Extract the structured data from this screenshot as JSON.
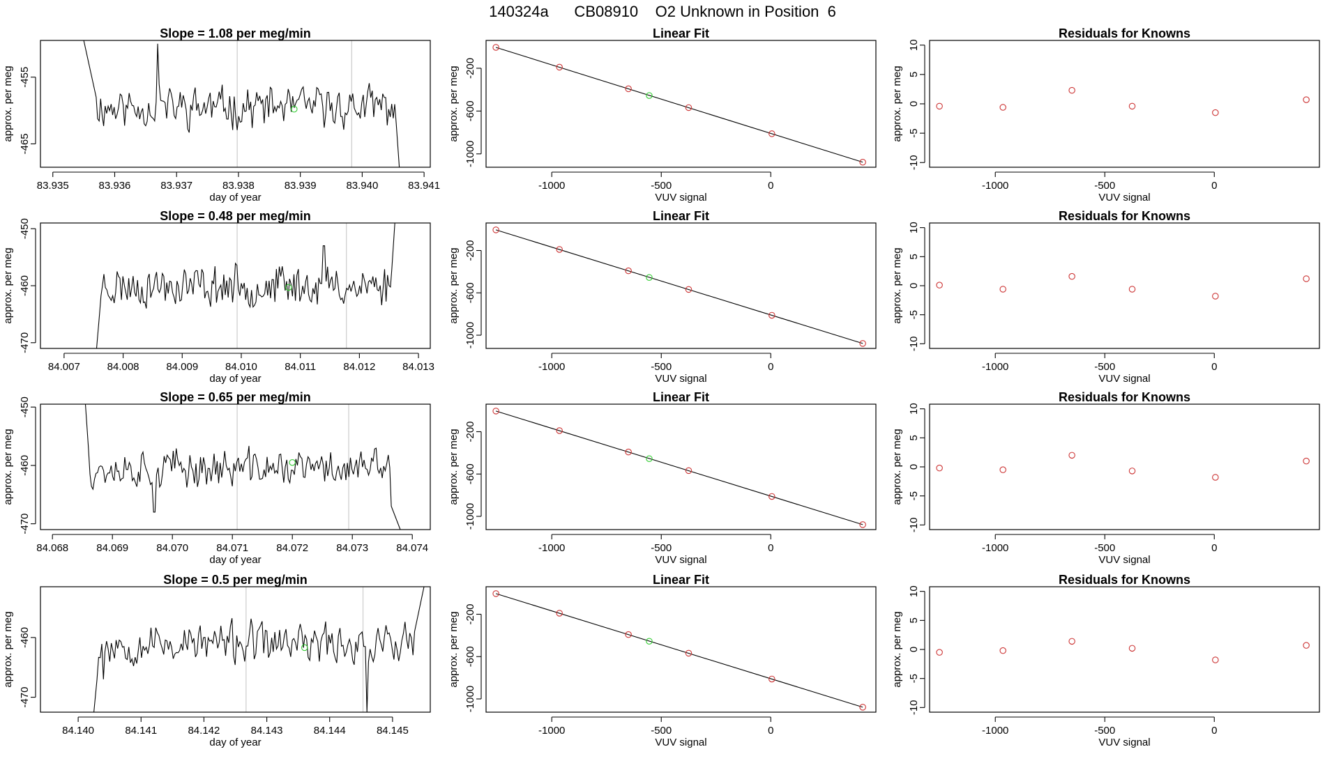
{
  "page": {
    "title": "140324a      CB08910    O2 Unknown in Position  6"
  },
  "colors": {
    "axis": "#000000",
    "trace": "#000000",
    "vline": "#cccccc",
    "known_point": "#cc3333",
    "unknown_point": "#33cc33"
  },
  "chart_data": [
    {
      "type": "line",
      "row": 0,
      "panel": "timeseries",
      "title": "Slope =  1.08  per meg/min",
      "xlabel": "day of year",
      "ylabel": "approx. per meg",
      "xlim": [
        83.9348,
        83.9411
      ],
      "ylim": [
        -468.5,
        -449.5
      ],
      "x_ticks": [
        83.935,
        83.936,
        83.937,
        83.938,
        83.939,
        83.94,
        83.941
      ],
      "x_tick_labels": [
        "83.935",
        "83.936",
        "83.937",
        "83.938",
        "83.939",
        "83.940",
        "83.941"
      ],
      "y_ticks": [
        -465,
        -455
      ],
      "y_tick_labels": [
        "-465",
        "-455"
      ],
      "vlines": [
        83.93798,
        83.93983
      ],
      "seed": 11,
      "level": -459.5,
      "spread": 3.2,
      "start": {
        "x": [
          83.9355,
          83.9357
        ],
        "y": [
          -449.5,
          -458
        ]
      },
      "end": {
        "x": [
          83.94055,
          83.9406
        ],
        "y": [
          -462,
          -468.5
        ]
      },
      "spikes": [
        {
          "x": 83.9367,
          "y": -450
        }
      ],
      "unknown": {
        "x": 83.9389,
        "y": -459.8
      }
    },
    {
      "type": "scatter",
      "row": 0,
      "panel": "fit",
      "title": "Linear Fit",
      "xlabel": "VUV signal",
      "ylabel": "approx. per meg",
      "xlim": [
        -1300,
        480
      ],
      "ylim": [
        -1125,
        60
      ],
      "x_ticks": [
        -1000,
        -500,
        0
      ],
      "x_tick_labels": [
        "-1000",
        "-500",
        "0"
      ],
      "y_ticks": [
        -1000,
        -600,
        -200
      ],
      "y_tick_labels": [
        "-1000",
        "-600",
        "-200"
      ],
      "line": {
        "x": [
          -1255,
          420
        ],
        "y": [
          -5,
          -1078
        ]
      },
      "known": {
        "x": [
          -1255,
          -965,
          -650,
          -375,
          5,
          420
        ],
        "y": [
          -5,
          -190,
          -392,
          -568,
          -812,
          -1078
        ]
      },
      "unknown": {
        "x": -555,
        "y": -455
      }
    },
    {
      "type": "scatter",
      "row": 0,
      "panel": "residuals",
      "title": "Residuals for Knowns",
      "xlabel": "VUV signal",
      "ylabel": "approx. per meg",
      "xlim": [
        -1300,
        480
      ],
      "ylim": [
        -10.8,
        10.8
      ],
      "x_ticks": [
        -1000,
        -500,
        0
      ],
      "x_tick_labels": [
        "-1000",
        "-500",
        "0"
      ],
      "y_ticks": [
        -10,
        -5,
        0,
        5,
        10
      ],
      "y_tick_labels": [
        "-10",
        "-5",
        "0",
        "5",
        "10"
      ],
      "points": {
        "x": [
          -1255,
          -965,
          -650,
          -375,
          5,
          420
        ],
        "y": [
          -0.4,
          -0.6,
          2.3,
          -0.4,
          -1.5,
          0.7
        ]
      }
    },
    {
      "type": "line",
      "row": 1,
      "panel": "timeseries",
      "title": "Slope =  0.48  per meg/min",
      "xlabel": "day of year",
      "ylabel": "approx. per meg",
      "xlim": [
        84.0066,
        84.0132
      ],
      "ylim": [
        -471,
        -449
      ],
      "x_ticks": [
        84.007,
        84.008,
        84.009,
        84.01,
        84.011,
        84.012,
        84.013
      ],
      "x_tick_labels": [
        "84.007",
        "84.008",
        "84.009",
        "84.010",
        "84.011",
        "84.012",
        "84.013"
      ],
      "y_ticks": [
        -470,
        -460,
        -450
      ],
      "y_tick_labels": [
        "-470",
        "-460",
        "-450"
      ],
      "vlines": [
        84.00993,
        84.01178
      ],
      "seed": 23,
      "level": -460,
      "spread": 3.8,
      "start": {
        "x": [
          84.00755,
          84.0076
        ],
        "y": [
          -471,
          -465
        ]
      },
      "end": {
        "x": [
          84.01255,
          84.0126
        ],
        "y": [
          -457,
          -449
        ]
      },
      "spikes": [
        {
          "x": 84.0114,
          "y": -453
        }
      ],
      "unknown": {
        "x": 84.0108,
        "y": -460.3
      }
    },
    {
      "type": "scatter",
      "row": 1,
      "panel": "fit",
      "title": "Linear Fit",
      "xlabel": "VUV signal",
      "ylabel": "approx. per meg",
      "xlim": [
        -1300,
        480
      ],
      "ylim": [
        -1125,
        60
      ],
      "x_ticks": [
        -1000,
        -500,
        0
      ],
      "x_tick_labels": [
        "-1000",
        "-500",
        "0"
      ],
      "y_ticks": [
        -1000,
        -600,
        -200
      ],
      "y_tick_labels": [
        "-1000",
        "-600",
        "-200"
      ],
      "line": {
        "x": [
          -1255,
          420
        ],
        "y": [
          -5,
          -1078
        ]
      },
      "known": {
        "x": [
          -1255,
          -965,
          -650,
          -375,
          5,
          420
        ],
        "y": [
          -5,
          -190,
          -392,
          -568,
          -812,
          -1078
        ]
      },
      "unknown": {
        "x": -555,
        "y": -455
      }
    },
    {
      "type": "scatter",
      "row": 1,
      "panel": "residuals",
      "title": "Residuals for Knowns",
      "xlabel": "VUV signal",
      "ylabel": "approx. per meg",
      "xlim": [
        -1300,
        480
      ],
      "ylim": [
        -10.8,
        10.8
      ],
      "x_ticks": [
        -1000,
        -500,
        0
      ],
      "x_tick_labels": [
        "-1000",
        "-500",
        "0"
      ],
      "y_ticks": [
        -10,
        -5,
        0,
        5,
        10
      ],
      "y_tick_labels": [
        "-10",
        "-5",
        "0",
        "5",
        "10"
      ],
      "points": {
        "x": [
          -1255,
          -965,
          -650,
          -375,
          5,
          420
        ],
        "y": [
          0.1,
          -0.6,
          1.6,
          -0.6,
          -1.8,
          1.2
        ]
      }
    },
    {
      "type": "line",
      "row": 2,
      "panel": "timeseries",
      "title": "Slope =  0.65  per meg/min",
      "xlabel": "day of year",
      "ylabel": "approx. per meg",
      "xlim": [
        84.0678,
        84.0743
      ],
      "ylim": [
        -471,
        -449.5
      ],
      "x_ticks": [
        84.068,
        84.069,
        84.07,
        84.071,
        84.072,
        84.073,
        84.074
      ],
      "x_tick_labels": [
        "84.068",
        "84.069",
        "84.070",
        "84.071",
        "84.072",
        "84.073",
        "84.074"
      ],
      "y_ticks": [
        -470,
        -460,
        -450
      ],
      "y_tick_labels": [
        "-470",
        "-460",
        "-450"
      ],
      "vlines": [
        84.07108,
        84.07294
      ],
      "seed": 37,
      "level": -460.5,
      "spread": 3.4,
      "start": {
        "x": [
          84.06855,
          84.0686
        ],
        "y": [
          -449.5,
          -457
        ]
      },
      "end": {
        "x": [
          84.07365,
          84.0738
        ],
        "y": [
          -467,
          -471
        ]
      },
      "spikes": [
        {
          "x": 84.0697,
          "y": -468
        }
      ],
      "unknown": {
        "x": 84.072,
        "y": -459.5
      }
    },
    {
      "type": "scatter",
      "row": 2,
      "panel": "fit",
      "title": "Linear Fit",
      "xlabel": "VUV signal",
      "ylabel": "approx. per meg",
      "xlim": [
        -1300,
        480
      ],
      "ylim": [
        -1125,
        60
      ],
      "x_ticks": [
        -1000,
        -500,
        0
      ],
      "x_tick_labels": [
        "-1000",
        "-500",
        "0"
      ],
      "y_ticks": [
        -1000,
        -600,
        -200
      ],
      "y_tick_labels": [
        "-1000",
        "-600",
        "-200"
      ],
      "line": {
        "x": [
          -1255,
          420
        ],
        "y": [
          -5,
          -1078
        ]
      },
      "known": {
        "x": [
          -1255,
          -965,
          -650,
          -375,
          5,
          420
        ],
        "y": [
          -5,
          -190,
          -392,
          -568,
          -812,
          -1078
        ]
      },
      "unknown": {
        "x": -555,
        "y": -455
      }
    },
    {
      "type": "scatter",
      "row": 2,
      "panel": "residuals",
      "title": "Residuals for Knowns",
      "xlabel": "VUV signal",
      "ylabel": "approx. per meg",
      "xlim": [
        -1300,
        480
      ],
      "ylim": [
        -10.8,
        10.8
      ],
      "x_ticks": [
        -1000,
        -500,
        0
      ],
      "x_tick_labels": [
        "-1000",
        "-500",
        "0"
      ],
      "y_ticks": [
        -10,
        -5,
        0,
        5,
        10
      ],
      "y_tick_labels": [
        "-10",
        "-5",
        "0",
        "5",
        "10"
      ],
      "points": {
        "x": [
          -1255,
          -965,
          -650,
          -375,
          5,
          420
        ],
        "y": [
          -0.2,
          -0.5,
          2.0,
          -0.7,
          -1.8,
          1.0
        ]
      }
    },
    {
      "type": "line",
      "row": 3,
      "panel": "timeseries",
      "title": "Slope =  0.5  per meg/min",
      "xlabel": "day of year",
      "ylabel": "approx. per meg",
      "xlim": [
        84.1394,
        84.1456
      ],
      "ylim": [
        -472.5,
        -451.5
      ],
      "x_ticks": [
        84.14,
        84.141,
        84.142,
        84.143,
        84.144,
        84.145
      ],
      "x_tick_labels": [
        "84.140",
        "84.141",
        "84.142",
        "84.143",
        "84.144",
        "84.145"
      ],
      "y_ticks": [
        -470,
        -460
      ],
      "y_tick_labels": [
        "-470",
        "-460"
      ],
      "vlines": [
        84.14267,
        84.14453
      ],
      "seed": 53,
      "level": -461,
      "spread": 3.6,
      "start": {
        "x": [
          84.14025,
          84.1403
        ],
        "y": [
          -472.5,
          -467
        ]
      },
      "end": {
        "x": [
          84.14535,
          84.1455
        ],
        "y": [
          -459,
          -451.5
        ]
      },
      "spikes": [
        {
          "x": 84.1446,
          "y": -472.5
        },
        {
          "x": 84.1404,
          "y": -467
        }
      ],
      "unknown": {
        "x": 84.1436,
        "y": -461.7
      }
    },
    {
      "type": "scatter",
      "row": 3,
      "panel": "fit",
      "title": "Linear Fit",
      "xlabel": "VUV signal",
      "ylabel": "approx. per meg",
      "xlim": [
        -1300,
        480
      ],
      "ylim": [
        -1125,
        60
      ],
      "x_ticks": [
        -1000,
        -500,
        0
      ],
      "x_tick_labels": [
        "-1000",
        "-500",
        "0"
      ],
      "y_ticks": [
        -1000,
        -600,
        -200
      ],
      "y_tick_labels": [
        "-1000",
        "-600",
        "-200"
      ],
      "line": {
        "x": [
          -1255,
          420
        ],
        "y": [
          -5,
          -1078
        ]
      },
      "known": {
        "x": [
          -1255,
          -965,
          -650,
          -375,
          5,
          420
        ],
        "y": [
          -5,
          -190,
          -392,
          -568,
          -812,
          -1078
        ]
      },
      "unknown": {
        "x": -555,
        "y": -455
      }
    },
    {
      "type": "scatter",
      "row": 3,
      "panel": "residuals",
      "title": "Residuals for Knowns",
      "xlabel": "VUV signal",
      "ylabel": "approx. per meg",
      "xlim": [
        -1300,
        480
      ],
      "ylim": [
        -10.8,
        10.8
      ],
      "x_ticks": [
        -1000,
        -500,
        0
      ],
      "x_tick_labels": [
        "-1000",
        "-500",
        "0"
      ],
      "y_ticks": [
        -10,
        -5,
        0,
        5,
        10
      ],
      "y_tick_labels": [
        "-10",
        "-5",
        "0",
        "5",
        "10"
      ],
      "points": {
        "x": [
          -1255,
          -965,
          -650,
          -375,
          5,
          420
        ],
        "y": [
          -0.5,
          -0.2,
          1.4,
          0.2,
          -1.8,
          0.7
        ]
      }
    }
  ]
}
